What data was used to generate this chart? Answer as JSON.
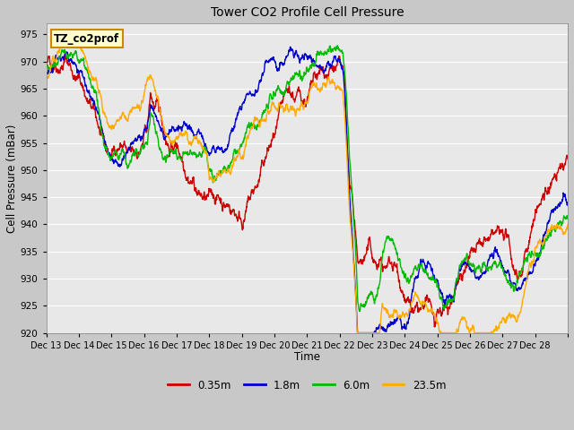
{
  "title": "Tower CO2 Profile Cell Pressure",
  "xlabel": "Time",
  "ylabel": "Cell Pressure (mBar)",
  "ylim": [
    920,
    977
  ],
  "yticks": [
    920,
    925,
    930,
    935,
    940,
    945,
    950,
    955,
    960,
    965,
    970,
    975
  ],
  "annotation_text": "TZ_co2prof",
  "annotation_bg": "#ffffcc",
  "annotation_border": "#cc8800",
  "fig_bg": "#c8c8c8",
  "plot_bg": "#e8e8e8",
  "series_colors": [
    "#cc0000",
    "#0000cc",
    "#00bb00",
    "#ffaa00"
  ],
  "series_labels": [
    "0.35m",
    "1.8m",
    "6.0m",
    "23.5m"
  ],
  "line_width": 1.0,
  "x_tick_labels": [
    "Dec 13",
    "Dec 14",
    "Dec 15",
    "Dec 16",
    "Dec 17",
    "Dec 18",
    "Dec 19",
    "Dec 20",
    "Dec 21",
    "Dec 22",
    "Dec 23",
    "Dec 24",
    "Dec 25",
    "Dec 26",
    "Dec 27",
    "Dec 28"
  ],
  "grid_color": "#ffffff",
  "figsize": [
    6.4,
    4.8
  ],
  "dpi": 100
}
